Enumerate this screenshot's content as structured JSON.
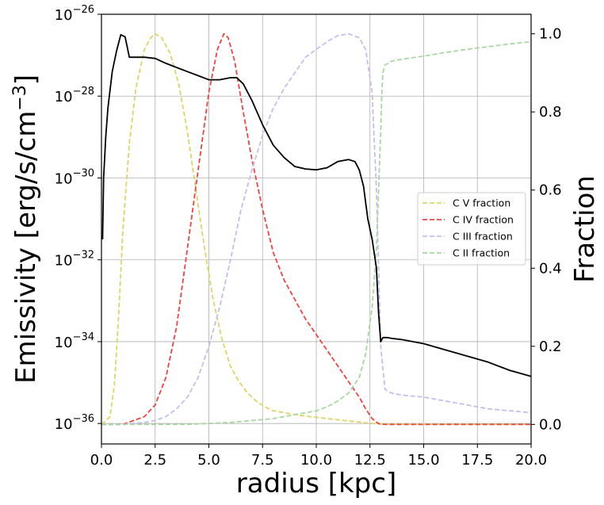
{
  "chart_data": {
    "type": "line",
    "xlabel": "radius [kpc]",
    "ylabel_left_text": "Emissivity [erg/s/cm",
    "ylabel_left_sup": "−3",
    "ylabel_left_close": "]",
    "ylabel_right": "Fraction",
    "xlim": [
      0,
      20
    ],
    "ylim_left_log10": [
      -36.5,
      -26
    ],
    "ylim_right": [
      -0.05,
      1.05
    ],
    "y_left_scale": "log",
    "grid": true,
    "legend_placement": "center-right",
    "x_ticks": [
      {
        "value": 0,
        "label": "0.0"
      },
      {
        "value": 2.5,
        "label": "2.5"
      },
      {
        "value": 5,
        "label": "5.0"
      },
      {
        "value": 7.5,
        "label": "7.5"
      },
      {
        "value": 10,
        "label": "10.0"
      },
      {
        "value": 12.5,
        "label": "12.5"
      },
      {
        "value": 15,
        "label": "15.0"
      },
      {
        "value": 17.5,
        "label": "17.5"
      },
      {
        "value": 20,
        "label": "20.0"
      }
    ],
    "y_left_ticks": [
      {
        "exp": -26,
        "base": "10",
        "sup": "−26"
      },
      {
        "exp": -28,
        "base": "10",
        "sup": "−28"
      },
      {
        "exp": -30,
        "base": "10",
        "sup": "−30"
      },
      {
        "exp": -32,
        "base": "10",
        "sup": "−32"
      },
      {
        "exp": -34,
        "base": "10",
        "sup": "−34"
      },
      {
        "exp": -36,
        "base": "10",
        "sup": "−36"
      }
    ],
    "y_right_ticks": [
      {
        "value": 0.0,
        "label": "0.0"
      },
      {
        "value": 0.2,
        "label": "0.2"
      },
      {
        "value": 0.4,
        "label": "0.4"
      },
      {
        "value": 0.6,
        "label": "0.6"
      },
      {
        "value": 0.8,
        "label": "0.8"
      },
      {
        "value": 1.0,
        "label": "1.0"
      }
    ],
    "emissivity": {
      "color": "#000000",
      "x": [
        0.05,
        0.1,
        0.2,
        0.3,
        0.5,
        0.7,
        0.9,
        1.1,
        1.3,
        1.6,
        2.0,
        2.5,
        3.0,
        3.5,
        4.0,
        4.5,
        5.0,
        5.5,
        6.0,
        6.3,
        6.6,
        7.0,
        7.5,
        8.0,
        8.5,
        9.0,
        9.5,
        10.0,
        10.5,
        11.0,
        11.5,
        11.8,
        12.0,
        12.2,
        12.4,
        12.6,
        12.8,
        12.9,
        13.0,
        13.1,
        13.2,
        13.3,
        13.5,
        14.0,
        15.0,
        16.0,
        17.0,
        18.0,
        19.0,
        20.0
      ],
      "log10_y": [
        -31.5,
        -30.0,
        -29.0,
        -28.3,
        -27.4,
        -26.9,
        -26.5,
        -26.55,
        -27.05,
        -27.05,
        -27.05,
        -27.08,
        -27.2,
        -27.3,
        -27.4,
        -27.5,
        -27.6,
        -27.6,
        -27.55,
        -27.55,
        -27.7,
        -28.1,
        -28.7,
        -29.2,
        -29.5,
        -29.72,
        -29.78,
        -29.8,
        -29.75,
        -29.6,
        -29.55,
        -29.6,
        -29.8,
        -30.2,
        -31.0,
        -31.5,
        -32.2,
        -33.3,
        -34.0,
        -33.9,
        -33.9,
        -33.9,
        -33.92,
        -33.95,
        -34.05,
        -34.2,
        -34.35,
        -34.5,
        -34.7,
        -34.85
      ]
    },
    "series": [
      {
        "name": "C V fraction",
        "color": "#dfd466",
        "x": [
          0.0,
          0.4,
          0.6,
          0.8,
          1.0,
          1.3,
          1.6,
          2.0,
          2.3,
          2.5,
          2.8,
          3.2,
          3.6,
          4.0,
          4.4,
          4.8,
          5.2,
          5.6,
          6.0,
          6.4,
          6.8,
          7.2,
          7.6,
          8.0,
          9.0,
          10.0,
          11.0,
          12.0,
          12.5,
          13.0,
          20.0
        ],
        "y": [
          0.0,
          0.02,
          0.1,
          0.28,
          0.5,
          0.72,
          0.86,
          0.96,
          0.99,
          1.0,
          0.99,
          0.95,
          0.87,
          0.75,
          0.6,
          0.45,
          0.32,
          0.22,
          0.15,
          0.11,
          0.08,
          0.06,
          0.045,
          0.035,
          0.025,
          0.018,
          0.012,
          0.006,
          0.003,
          0.001,
          0.0
        ]
      },
      {
        "name": "C IV fraction",
        "color": "#ee4444",
        "x": [
          0.0,
          0.5,
          1.0,
          1.5,
          2.0,
          2.5,
          3.0,
          3.5,
          4.0,
          4.5,
          5.0,
          5.4,
          5.7,
          5.9,
          6.2,
          6.6,
          7.0,
          7.5,
          8.0,
          8.5,
          9.0,
          9.5,
          10.0,
          10.5,
          11.0,
          11.5,
          12.0,
          12.3,
          12.6,
          12.9,
          13.2,
          20.0
        ],
        "y": [
          0.0,
          0.0,
          0.0,
          0.01,
          0.02,
          0.05,
          0.12,
          0.25,
          0.45,
          0.65,
          0.85,
          0.96,
          1.0,
          0.99,
          0.93,
          0.8,
          0.68,
          0.55,
          0.44,
          0.37,
          0.32,
          0.27,
          0.23,
          0.19,
          0.15,
          0.11,
          0.07,
          0.04,
          0.015,
          0.002,
          0.0,
          0.0
        ]
      },
      {
        "name": "C III fraction",
        "color": "#c0c0f0",
        "x": [
          0.0,
          1.0,
          2.0,
          2.5,
          3.0,
          3.5,
          4.0,
          4.5,
          5.0,
          5.5,
          6.0,
          6.5,
          7.0,
          7.5,
          8.0,
          8.5,
          9.0,
          9.5,
          10.0,
          10.5,
          11.0,
          11.5,
          12.0,
          12.3,
          12.6,
          12.8,
          13.0,
          13.2,
          13.5,
          14.0,
          15.0,
          16.0,
          17.0,
          18.0,
          19.0,
          20.0
        ],
        "y": [
          0.0,
          0.0,
          0.005,
          0.01,
          0.02,
          0.04,
          0.07,
          0.12,
          0.2,
          0.3,
          0.42,
          0.55,
          0.65,
          0.74,
          0.81,
          0.86,
          0.9,
          0.94,
          0.96,
          0.98,
          0.995,
          1.0,
          0.99,
          0.96,
          0.85,
          0.6,
          0.2,
          0.09,
          0.08,
          0.075,
          0.07,
          0.06,
          0.05,
          0.04,
          0.035,
          0.03
        ]
      },
      {
        "name": "C II fraction",
        "color": "#a8d8a0",
        "x": [
          0.0,
          2.0,
          4.0,
          6.0,
          8.0,
          9.0,
          10.0,
          10.5,
          11.0,
          11.5,
          12.0,
          12.3,
          12.6,
          12.8,
          12.9,
          13.0,
          13.05,
          13.1,
          13.2,
          13.5,
          14.0,
          15.0,
          16.0,
          17.0,
          18.0,
          19.0,
          20.0
        ],
        "y": [
          0.0,
          0.0,
          0.0,
          0.005,
          0.015,
          0.025,
          0.035,
          0.045,
          0.06,
          0.08,
          0.12,
          0.18,
          0.3,
          0.45,
          0.6,
          0.75,
          0.85,
          0.9,
          0.92,
          0.93,
          0.935,
          0.943,
          0.952,
          0.96,
          0.967,
          0.974,
          0.98
        ]
      }
    ]
  }
}
